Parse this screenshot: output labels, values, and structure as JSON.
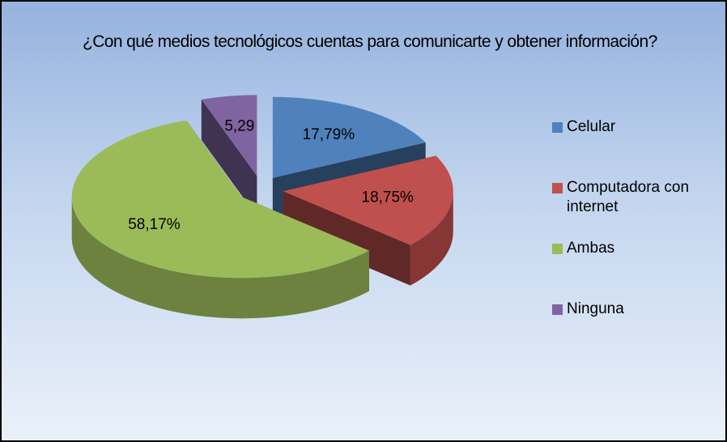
{
  "chart_data": {
    "type": "pie",
    "title": "¿Con qué medios tecnológicos cuentas para comunicarte y obtener información?",
    "categories": [
      "Celular",
      "Computadora con internet",
      "Ambas",
      "Ninguna"
    ],
    "values": [
      17.79,
      18.75,
      58.17,
      5.29
    ],
    "value_labels": [
      "17,79%",
      "18,75%",
      "58,17%",
      "5,29"
    ],
    "colors": [
      "#4f81bd",
      "#c0504d",
      "#9bbb59",
      "#8064a2"
    ],
    "legend": "right"
  }
}
